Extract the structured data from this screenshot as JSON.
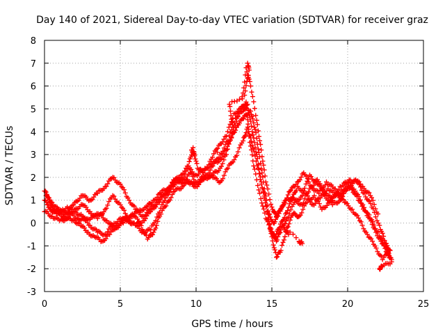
{
  "chart_data": {
    "type": "scatter",
    "title": "Day 140 of 2021, Sidereal Day-to-day VTEC variation (SDTVAR) for receiver graz",
    "xlabel": "GPS time / hours",
    "ylabel": "SDTVAR / TECUs",
    "xlim": [
      0,
      25
    ],
    "ylim": [
      -3,
      8
    ],
    "xticks": [
      0,
      5,
      10,
      15,
      20,
      25
    ],
    "yticks": [
      -3,
      -2,
      -1,
      0,
      1,
      2,
      3,
      4,
      5,
      6,
      7,
      8
    ],
    "grid": true,
    "marker": "plus",
    "series_color": "#ff0000",
    "series": [
      {
        "name": "s1",
        "points": [
          [
            0,
            1.4
          ],
          [
            0.3,
            1.1
          ],
          [
            0.6,
            0.6
          ],
          [
            1,
            0.4
          ],
          [
            1.5,
            0.7
          ],
          [
            2,
            0.5
          ],
          [
            2.5,
            0.3
          ],
          [
            3,
            -0.1
          ],
          [
            3.5,
            -0.4
          ],
          [
            4,
            -0.5
          ],
          [
            4.5,
            -0.1
          ],
          [
            5,
            0.2
          ],
          [
            5.5,
            0.1
          ],
          [
            6,
            -0.1
          ],
          [
            6.5,
            -0.4
          ],
          [
            7,
            -0.3
          ],
          [
            7.5,
            0.4
          ],
          [
            8,
            1.1
          ],
          [
            8.5,
            1.7
          ],
          [
            9,
            2.0
          ],
          [
            9.5,
            1.8
          ],
          [
            10,
            1.6
          ],
          [
            10.5,
            1.9
          ],
          [
            11,
            2.1
          ],
          [
            11.5,
            2.3
          ],
          [
            12,
            3.0
          ],
          [
            12.5,
            4.2
          ],
          [
            13,
            5.1
          ],
          [
            13.3,
            6.8
          ],
          [
            13.6,
            6.0
          ],
          [
            14,
            4.5
          ],
          [
            14.3,
            3.2
          ],
          [
            14.6,
            1.8
          ],
          [
            15,
            0.7
          ],
          [
            15.3,
            0.3
          ],
          [
            15.6,
            0.6
          ],
          [
            16,
            1.1
          ],
          [
            16.5,
            1.0
          ],
          [
            17,
            0.8
          ],
          [
            17.5,
            1.5
          ],
          [
            18,
            1.9
          ],
          [
            18.5,
            1.2
          ],
          [
            19,
            0.8
          ],
          [
            19.5,
            1.0
          ],
          [
            20,
            1.5
          ],
          [
            20.5,
            1.9
          ],
          [
            21,
            1.6
          ],
          [
            21.5,
            1.2
          ],
          [
            22,
            0.4
          ]
        ]
      },
      {
        "name": "s2",
        "points": [
          [
            0,
            1.0
          ],
          [
            0.4,
            0.6
          ],
          [
            0.8,
            0.4
          ],
          [
            1.3,
            0.3
          ],
          [
            1.8,
            0.1
          ],
          [
            2.3,
            0.0
          ],
          [
            2.8,
            -0.4
          ],
          [
            3.3,
            -0.6
          ],
          [
            3.8,
            -0.8
          ],
          [
            4.3,
            -0.5
          ],
          [
            4.8,
            -0.1
          ],
          [
            5.3,
            0.2
          ],
          [
            5.8,
            0.4
          ],
          [
            6.3,
            0.0
          ],
          [
            6.8,
            -0.7
          ],
          [
            7.2,
            -0.4
          ],
          [
            7.6,
            0.3
          ],
          [
            8.1,
            0.9
          ],
          [
            8.6,
            1.4
          ],
          [
            9.1,
            1.6
          ],
          [
            9.6,
            2.2
          ],
          [
            10.1,
            1.7
          ],
          [
            10.6,
            2.0
          ],
          [
            11.1,
            2.5
          ],
          [
            11.6,
            3.0
          ],
          [
            12.1,
            3.6
          ],
          [
            12.6,
            4.6
          ],
          [
            13.1,
            4.9
          ],
          [
            13.4,
            5.2
          ],
          [
            13.7,
            4.0
          ],
          [
            14,
            3.0
          ],
          [
            14.3,
            1.8
          ],
          [
            14.7,
            0.5
          ],
          [
            15,
            -0.6
          ],
          [
            15.3,
            -1.5
          ],
          [
            15.6,
            -1.2
          ],
          [
            16,
            -0.2
          ],
          [
            16.4,
            0.4
          ],
          [
            16.8,
            0.3
          ],
          [
            17.3,
            0.9
          ],
          [
            17.8,
            1.2
          ],
          [
            18.3,
            0.6
          ],
          [
            18.8,
            0.9
          ],
          [
            19.3,
            1.3
          ],
          [
            19.8,
            0.9
          ],
          [
            20.3,
            0.6
          ],
          [
            20.8,
            0.1
          ],
          [
            21.3,
            -0.5
          ],
          [
            21.8,
            -1.0
          ],
          [
            22.3,
            -1.6
          ],
          [
            22.8,
            -1.2
          ]
        ]
      },
      {
        "name": "s3",
        "points": [
          [
            0,
            0.5
          ],
          [
            0.5,
            0.3
          ],
          [
            1,
            0.1
          ],
          [
            1.5,
            0.2
          ],
          [
            2,
            0.6
          ],
          [
            2.5,
            0.8
          ],
          [
            3,
            0.5
          ],
          [
            3.5,
            0.2
          ],
          [
            4,
            0.6
          ],
          [
            4.5,
            1.2
          ],
          [
            5,
            0.8
          ],
          [
            5.5,
            0.2
          ],
          [
            6,
            -0.1
          ],
          [
            6.5,
            0.1
          ],
          [
            7,
            0.5
          ],
          [
            7.5,
            0.9
          ],
          [
            8,
            1.3
          ],
          [
            8.5,
            1.8
          ],
          [
            9,
            2.1
          ],
          [
            9.5,
            2.5
          ],
          [
            9.8,
            3.3
          ],
          [
            10.1,
            2.4
          ],
          [
            10.5,
            2.2
          ],
          [
            11,
            2.8
          ],
          [
            11.5,
            3.4
          ],
          [
            12,
            3.8
          ],
          [
            12.5,
            4.8
          ],
          [
            13,
            5.0
          ],
          [
            13.3,
            5.3
          ],
          [
            13.5,
            3.8
          ],
          [
            13.8,
            2.5
          ],
          [
            14.2,
            1.3
          ],
          [
            14.6,
            0.2
          ],
          [
            15,
            -0.4
          ],
          [
            15.3,
            -0.8
          ],
          [
            15.6,
            -0.3
          ],
          [
            16,
            0.2
          ],
          [
            16.5,
            0.9
          ],
          [
            17,
            1.2
          ],
          [
            17.5,
            2.1
          ],
          [
            18,
            1.7
          ],
          [
            18.5,
            1.4
          ],
          [
            19,
            1.0
          ],
          [
            19.5,
            1.6
          ],
          [
            20,
            1.8
          ],
          [
            20.5,
            1.4
          ],
          [
            21,
            0.8
          ],
          [
            21.5,
            0.2
          ],
          [
            22,
            -0.4
          ],
          [
            22.5,
            -1.0
          ],
          [
            22.8,
            -1.5
          ]
        ]
      },
      {
        "name": "s4",
        "points": [
          [
            0.2,
            0.8
          ],
          [
            0.7,
            0.5
          ],
          [
            1.2,
            0.6
          ],
          [
            1.7,
            0.4
          ],
          [
            2.2,
            0.2
          ],
          [
            2.7,
            0.1
          ],
          [
            3.2,
            0.3
          ],
          [
            3.7,
            0.4
          ],
          [
            4.2,
            0.0
          ],
          [
            4.7,
            -0.2
          ],
          [
            5.2,
            0.0
          ],
          [
            5.7,
            0.3
          ],
          [
            6.2,
            0.5
          ],
          [
            6.7,
            0.7
          ],
          [
            7.1,
            0.9
          ],
          [
            7.6,
            1.3
          ],
          [
            8.1,
            1.5
          ],
          [
            8.6,
            1.9
          ],
          [
            9.1,
            1.8
          ],
          [
            9.6,
            1.7
          ],
          [
            10.1,
            1.8
          ],
          [
            10.6,
            2.1
          ],
          [
            11.1,
            2.0
          ],
          [
            11.6,
            1.8
          ],
          [
            12.1,
            2.4
          ],
          [
            12.6,
            2.9
          ],
          [
            13.1,
            3.6
          ],
          [
            13.4,
            4.2
          ],
          [
            13.7,
            3.4
          ],
          [
            14.1,
            2.4
          ],
          [
            14.5,
            1.1
          ],
          [
            14.9,
            -0.2
          ],
          [
            15.2,
            -0.6
          ],
          [
            15.5,
            -0.2
          ],
          [
            15.9,
            0.4
          ],
          [
            16.3,
            1.0
          ],
          [
            16.7,
            1.6
          ],
          [
            17.2,
            1.3
          ],
          [
            17.7,
            0.8
          ],
          [
            18.2,
            1.1
          ],
          [
            18.7,
            1.5
          ],
          [
            19.2,
            1.2
          ],
          [
            19.7,
            1.4
          ],
          [
            20.2,
            1.6
          ],
          [
            20.7,
            1.0
          ],
          [
            21.2,
            0.5
          ],
          [
            21.7,
            -0.2
          ],
          [
            22.2,
            -0.8
          ],
          [
            22.6,
            -1.3
          ],
          [
            22.9,
            -1.6
          ]
        ]
      },
      {
        "name": "s5",
        "points": [
          [
            0.1,
            1.2
          ],
          [
            0.5,
            0.9
          ],
          [
            1,
            0.5
          ],
          [
            1.5,
            0.4
          ],
          [
            2,
            0.9
          ],
          [
            2.5,
            1.2
          ],
          [
            3,
            1.0
          ],
          [
            3.5,
            1.3
          ],
          [
            4,
            1.6
          ],
          [
            4.5,
            2.0
          ],
          [
            5,
            1.7
          ],
          [
            5.5,
            1.1
          ],
          [
            6,
            0.6
          ],
          [
            6.5,
            0.3
          ],
          [
            7,
            0.6
          ],
          [
            7.5,
            1.0
          ],
          [
            8,
            1.3
          ],
          [
            8.5,
            1.6
          ],
          [
            9,
            1.9
          ],
          [
            9.5,
            2.4
          ],
          [
            10,
            2.1
          ],
          [
            10.5,
            2.3
          ],
          [
            11,
            2.6
          ],
          [
            11.5,
            2.7
          ],
          [
            12,
            3.2
          ],
          [
            12.4,
            3.9
          ],
          [
            12.8,
            4.3
          ],
          [
            13.2,
            4.7
          ],
          [
            13.6,
            4.9
          ],
          [
            13.9,
            4.1
          ],
          [
            14.2,
            2.9
          ],
          [
            14.5,
            1.5
          ],
          [
            14.8,
            0.4
          ],
          [
            15.1,
            0.0
          ],
          [
            15.4,
            0.3
          ],
          [
            15.8,
            0.9
          ],
          [
            16.2,
            1.4
          ],
          [
            16.6,
            1.7
          ],
          [
            17.1,
            2.2
          ],
          [
            17.6,
            1.6
          ],
          [
            18.1,
            1.3
          ],
          [
            18.6,
            1.8
          ],
          [
            19.1,
            1.5
          ],
          [
            19.6,
            1.2
          ],
          [
            20.1,
            1.9
          ],
          [
            20.6,
            1.8
          ],
          [
            21.1,
            1.3
          ],
          [
            21.6,
            0.7
          ],
          [
            22.1,
            -0.1
          ],
          [
            22.5,
            -0.9
          ],
          [
            22.8,
            -1.2
          ]
        ]
      },
      {
        "name": "s6",
        "points": [
          [
            16.8,
            -0.8
          ],
          [
            17,
            -0.9
          ],
          [
            15.8,
            -0.2
          ],
          [
            16.1,
            -0.5
          ],
          [
            13.4,
            7.0
          ],
          [
            13.5,
            6.7
          ],
          [
            13.2,
            5.6
          ],
          [
            12.2,
            5.2
          ],
          [
            12.4,
            4.3
          ],
          [
            9.7,
            3.2
          ],
          [
            9.9,
            3.0
          ],
          [
            11.4,
            3.1
          ],
          [
            22.1,
            -2.0
          ],
          [
            22.3,
            -1.9
          ],
          [
            22.9,
            -1.7
          ]
        ]
      }
    ]
  }
}
